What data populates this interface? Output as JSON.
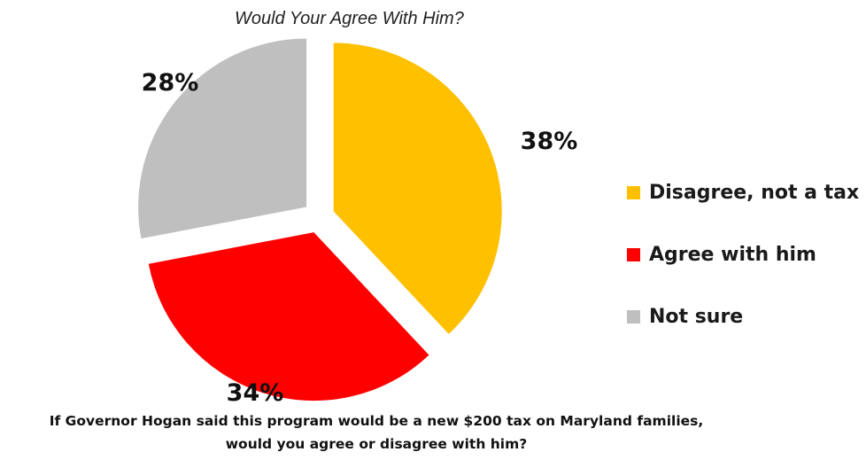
{
  "header": {
    "subtitle": "Would Your Agree With Him?"
  },
  "chart_data": {
    "type": "pie",
    "title": "",
    "subtitle": "Would Your Agree With Him?",
    "slices": [
      {
        "label": "Disagree, not a tax",
        "value": 38,
        "display": "38%",
        "color": "#FFC000"
      },
      {
        "label": "Agree with him",
        "value": 34,
        "display": "34%",
        "color": "#FF0000"
      },
      {
        "label": "Not sure",
        "value": 28,
        "display": "28%",
        "color": "#BFBFBF"
      }
    ],
    "legend_position": "right",
    "exploded": true
  },
  "footer": {
    "question_line1": "If Governor Hogan said this program would be a new $200 tax on Maryland families,",
    "question_line2": "would you agree or disagree with him?"
  }
}
